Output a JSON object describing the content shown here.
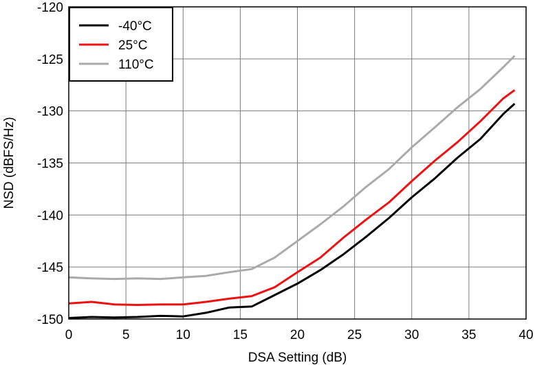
{
  "chart_data": {
    "type": "line",
    "title": "",
    "xlabel": "DSA Setting (dB)",
    "ylabel": "NSD (dBFS/Hz)",
    "xlim": [
      0,
      40
    ],
    "ylim": [
      -150,
      -120
    ],
    "xticks": [
      0,
      5,
      10,
      15,
      20,
      25,
      30,
      35,
      40
    ],
    "yticks": [
      -150,
      -145,
      -140,
      -135,
      -130,
      -125,
      -120
    ],
    "grid": true,
    "legend_position": "top-left",
    "series": [
      {
        "name": "-40°C",
        "color": "#000000",
        "x": [
          0,
          2,
          4,
          6,
          8,
          10,
          12,
          14,
          16,
          18,
          20,
          22,
          24,
          26,
          28,
          30,
          32,
          34,
          36,
          38,
          39
        ],
        "y": [
          -149.9,
          -149.8,
          -149.85,
          -149.8,
          -149.7,
          -149.75,
          -149.4,
          -148.9,
          -148.8,
          -147.7,
          -146.6,
          -145.3,
          -143.8,
          -142.1,
          -140.3,
          -138.3,
          -136.5,
          -134.5,
          -132.7,
          -130.3,
          -129.3
        ]
      },
      {
        "name": "25°C",
        "color": "#ee1111",
        "x": [
          0,
          2,
          4,
          6,
          8,
          10,
          12,
          14,
          16,
          18,
          20,
          22,
          24,
          26,
          28,
          30,
          32,
          34,
          36,
          38,
          39
        ],
        "y": [
          -148.5,
          -148.35,
          -148.6,
          -148.65,
          -148.6,
          -148.6,
          -148.35,
          -148.05,
          -147.8,
          -146.95,
          -145.5,
          -144.1,
          -142.2,
          -140.45,
          -138.8,
          -136.75,
          -134.8,
          -133.0,
          -131.0,
          -128.8,
          -128.0
        ]
      },
      {
        "name": "110°C",
        "color": "#aaaaaa",
        "x": [
          0,
          2,
          4,
          6,
          8,
          10,
          12,
          14,
          16,
          18,
          20,
          22,
          24,
          26,
          28,
          30,
          32,
          34,
          36,
          38,
          39
        ],
        "y": [
          -146.0,
          -146.1,
          -146.15,
          -146.1,
          -146.15,
          -146.0,
          -145.85,
          -145.5,
          -145.2,
          -144.1,
          -142.5,
          -140.9,
          -139.2,
          -137.3,
          -135.6,
          -133.5,
          -131.6,
          -129.65,
          -127.9,
          -125.8,
          -124.7
        ]
      }
    ]
  }
}
